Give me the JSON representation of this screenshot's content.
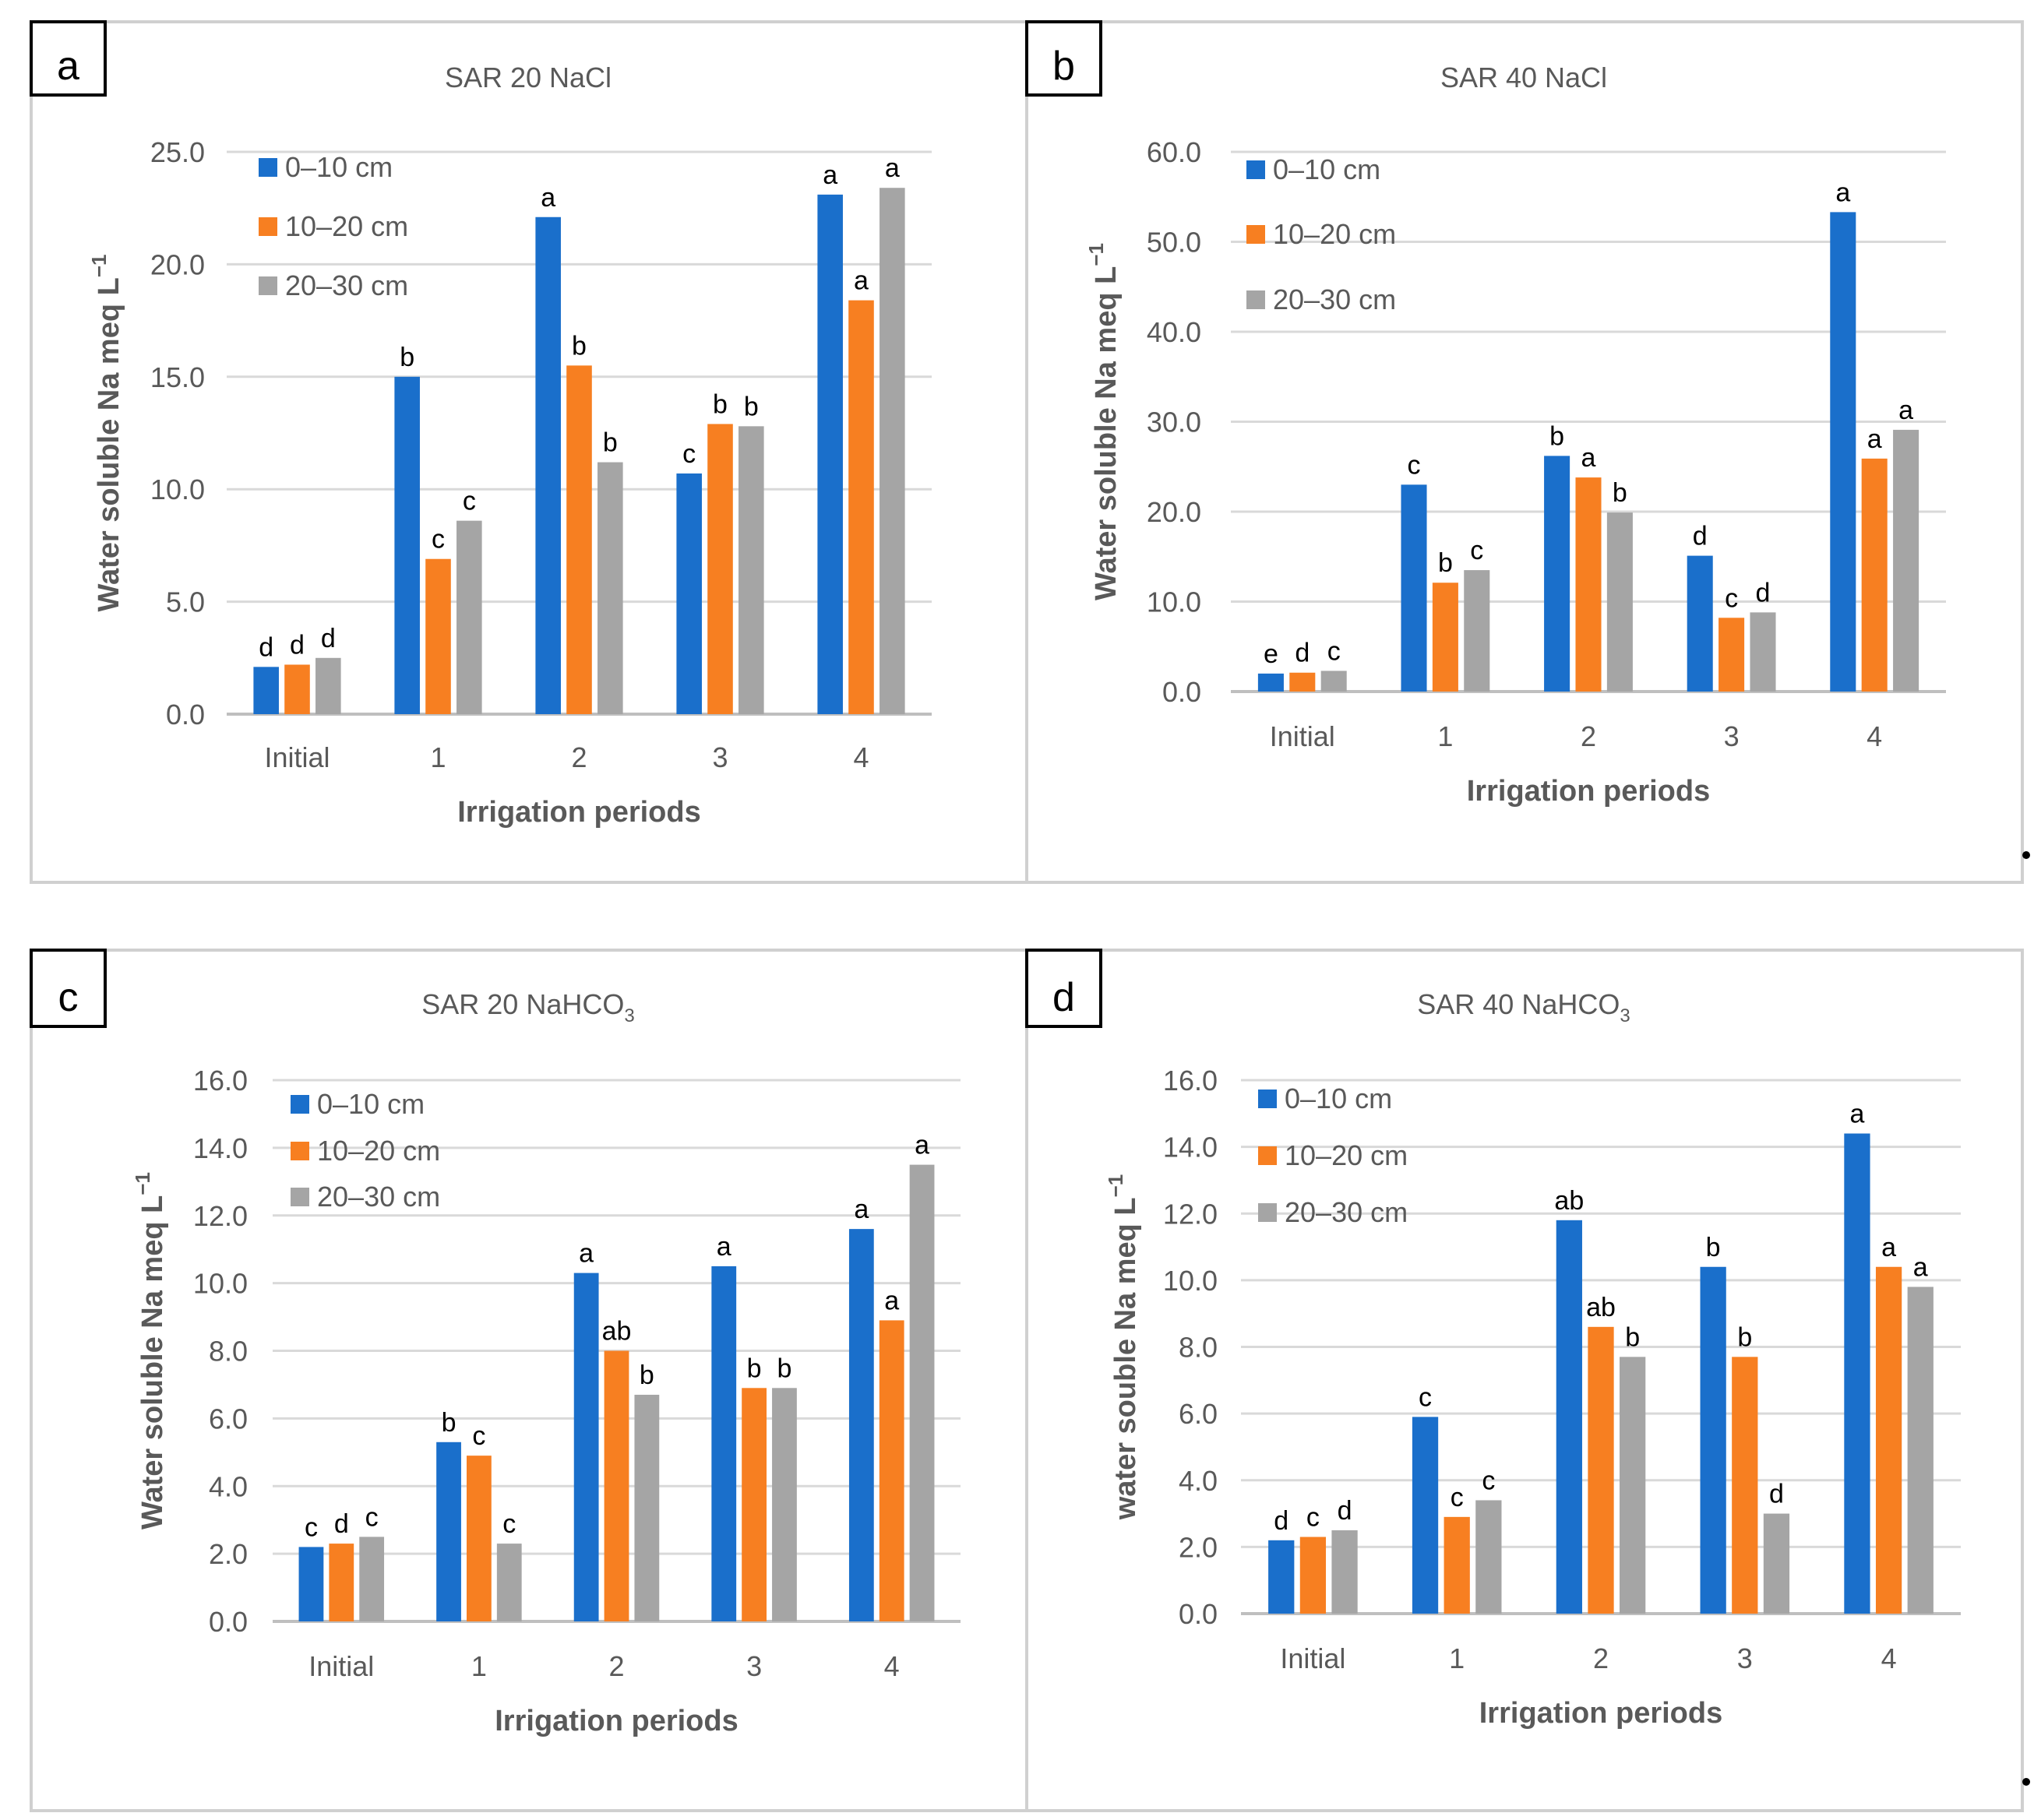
{
  "colors": {
    "series": [
      "#1a6fcb",
      "#f77f21",
      "#a5a5a5"
    ],
    "grid": "#d9d9d9",
    "axis": "#bfbfbf",
    "frame": "#d0d0d0",
    "text": "#595959"
  },
  "chart_data": [
    {
      "type": "bar",
      "panel_label": "a",
      "title": "SAR 20 NaCl",
      "title_sub": "",
      "xlabel": "Irrigation periods",
      "ylabel": "Water soluble Na meq L",
      "ylabel_sup": "−1",
      "ylim": [
        0,
        25
      ],
      "yticks": [
        "0.0",
        "5.0",
        "10.0",
        "15.0",
        "20.0",
        "25.0"
      ],
      "grid": true,
      "legend_position": "top-left",
      "categories": [
        "Initial",
        "1",
        "2",
        "3",
        "4"
      ],
      "series": [
        {
          "name": "0–10 cm",
          "values": [
            2.1,
            15.0,
            22.1,
            10.7,
            23.1
          ],
          "letters": [
            "d",
            "b",
            "a",
            "c",
            "a"
          ]
        },
        {
          "name": "10–20 cm",
          "values": [
            2.2,
            6.9,
            15.5,
            12.9,
            18.4
          ],
          "letters": [
            "d",
            "c",
            "b",
            "b",
            "a"
          ]
        },
        {
          "name": "20–30 cm",
          "values": [
            2.5,
            8.6,
            11.2,
            12.8,
            23.4
          ],
          "letters": [
            "d",
            "c",
            "b",
            "b",
            "a"
          ]
        }
      ]
    },
    {
      "type": "bar",
      "panel_label": "b",
      "title": "SAR 40 NaCl",
      "title_sub": "",
      "xlabel": "Irrigation periods",
      "ylabel": "Water soluble Na meq L",
      "ylabel_sup": "−1",
      "ylim": [
        0,
        60
      ],
      "yticks": [
        "0.0",
        "10.0",
        "20.0",
        "30.0",
        "40.0",
        "50.0",
        "60.0"
      ],
      "grid": true,
      "legend_position": "top-left",
      "categories": [
        "Initial",
        "1",
        "2",
        "3",
        "4"
      ],
      "series": [
        {
          "name": "0–10 cm",
          "values": [
            2.0,
            23.0,
            26.2,
            15.1,
            53.3
          ],
          "letters": [
            "e",
            "c",
            "b",
            "d",
            "a"
          ]
        },
        {
          "name": "10–20 cm",
          "values": [
            2.1,
            12.1,
            23.8,
            8.2,
            25.9
          ],
          "letters": [
            "d",
            "b",
            "a",
            "c",
            "a"
          ]
        },
        {
          "name": "20–30 cm",
          "values": [
            2.3,
            13.5,
            19.9,
            8.8,
            29.1
          ],
          "letters": [
            "c",
            "c",
            "b",
            "d",
            "a"
          ]
        }
      ]
    },
    {
      "type": "bar",
      "panel_label": "c",
      "title": "SAR 20 NaHCO",
      "title_sub": "3",
      "xlabel": "Irrigation periods",
      "ylabel": "Water soluble Na meq L",
      "ylabel_sup": "−1",
      "ylim": [
        0,
        16
      ],
      "yticks": [
        "0.0",
        "2.0",
        "4.0",
        "6.0",
        "8.0",
        "10.0",
        "12.0",
        "14.0",
        "16.0"
      ],
      "grid": true,
      "legend_position": "top-left",
      "categories": [
        "Initial",
        "1",
        "2",
        "3",
        "4"
      ],
      "series": [
        {
          "name": "0–10 cm",
          "values": [
            2.2,
            5.3,
            10.3,
            10.5,
            11.6
          ],
          "letters": [
            "c",
            "b",
            "a",
            "a",
            "a"
          ]
        },
        {
          "name": "10–20 cm",
          "values": [
            2.3,
            4.9,
            8.0,
            6.9,
            8.9
          ],
          "letters": [
            "d",
            "c",
            "ab",
            "b",
            "a"
          ]
        },
        {
          "name": "20–30 cm",
          "values": [
            2.5,
            2.3,
            6.7,
            6.9,
            13.5
          ],
          "letters": [
            "c",
            "c",
            "b",
            "b",
            "a"
          ]
        }
      ]
    },
    {
      "type": "bar",
      "panel_label": "d",
      "title": "SAR 40 NaHCO",
      "title_sub": "3",
      "xlabel": "Irrigation periods",
      "ylabel": "water souble Na meq L",
      "ylabel_sup": "−1",
      "ylim": [
        0,
        16
      ],
      "yticks": [
        "0.0",
        "2.0",
        "4.0",
        "6.0",
        "8.0",
        "10.0",
        "12.0",
        "14.0",
        "16.0"
      ],
      "grid": true,
      "legend_position": "top-left",
      "categories": [
        "Initial",
        "1",
        "2",
        "3",
        "4"
      ],
      "series": [
        {
          "name": "0–10 cm",
          "values": [
            2.2,
            5.9,
            11.8,
            10.4,
            14.4
          ],
          "letters": [
            "d",
            "c",
            "ab",
            "b",
            "a"
          ]
        },
        {
          "name": "10–20 cm",
          "values": [
            2.3,
            2.9,
            8.6,
            7.7,
            10.4
          ],
          "letters": [
            "c",
            "c",
            "ab",
            "b",
            "a"
          ]
        },
        {
          "name": "20–30 cm",
          "values": [
            2.5,
            3.4,
            7.7,
            3.0,
            9.8
          ],
          "letters": [
            "d",
            "c",
            "b",
            "d",
            "a"
          ]
        }
      ]
    }
  ]
}
